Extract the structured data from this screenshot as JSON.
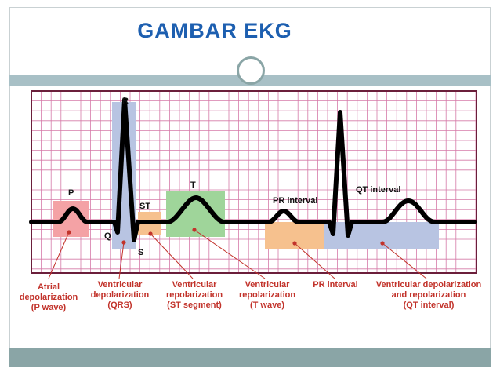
{
  "slide": {
    "title": "GAMBAR EKG"
  },
  "colors": {
    "title": "#1d5fb0",
    "grid_line": "#d57aa8",
    "grid_border": "#6b1f3b",
    "trace": "#000000",
    "label": "#c2332b",
    "highlight_qrs": "#b8c4e2",
    "highlight_p": "#f4a2a5",
    "highlight_st": "#f6c18e",
    "highlight_t": "#9fd59a",
    "highlight_pr": "#f6c18e",
    "highlight_qt": "#b8c4e2"
  },
  "wave_labels": {
    "p": "P",
    "q": "Q",
    "r": "R",
    "s": "S",
    "st": "ST",
    "t": "T",
    "pr_interval": "PR interval",
    "qt_interval": "QT interval"
  },
  "callouts": [
    {
      "line1": "Atrial",
      "line2": "depolarization",
      "line3": "(P wave)"
    },
    {
      "line1": "Ventricular",
      "line2": "depolarization",
      "line3": "(QRS)"
    },
    {
      "line1": "Ventricular",
      "line2": "repolarization",
      "line3": "(ST segment)"
    },
    {
      "line1": "Ventricular",
      "line2": "repolarization",
      "line3": "(T wave)"
    },
    {
      "line1": "PR interval",
      "line2": "",
      "line3": ""
    },
    {
      "line1": "Ventricular depolarization",
      "line2": "and repolarization",
      "line3": "(QT interval)"
    }
  ]
}
